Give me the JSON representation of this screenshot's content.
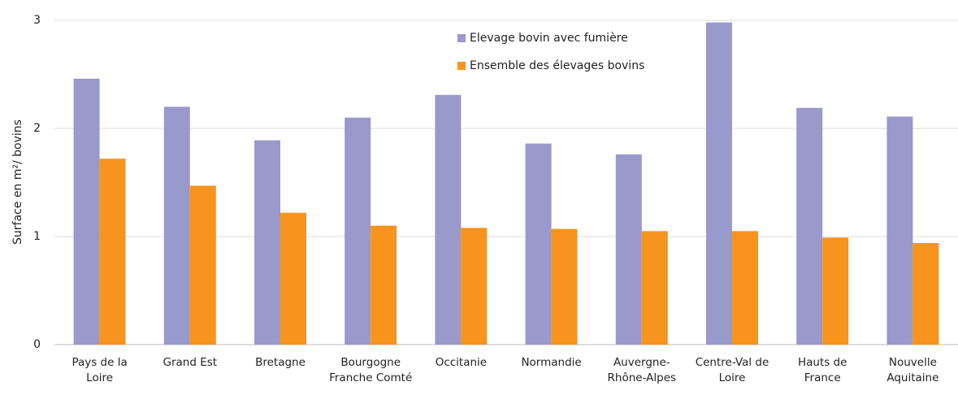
{
  "chart_data": {
    "type": "bar",
    "y_label": "Surface en m²/ bovins",
    "categories": [
      "Pays de la Loire",
      "Grand Est",
      "Bretagne",
      "Bourgogne Franche Comté",
      "Occitanie",
      "Normandie",
      "Auvergne-Rhône-Alpes",
      "Centre-Val de Loire",
      "Hauts de France",
      "Nouvelle Aquitaine"
    ],
    "series": [
      {
        "name": "Elevage bovin avec fumière",
        "color": "#9999cc",
        "values": [
          2.46,
          2.2,
          1.89,
          2.1,
          2.31,
          1.86,
          1.76,
          2.98,
          2.19,
          2.11
        ]
      },
      {
        "name": "Ensemble des élevages bovins",
        "color": "#f7941d",
        "values": [
          1.72,
          1.47,
          1.22,
          1.1,
          1.08,
          1.07,
          1.05,
          1.05,
          0.99,
          0.94
        ]
      }
    ],
    "ylim": [
      0,
      3
    ],
    "yticks": [
      0,
      1,
      2,
      3
    ],
    "grid": true,
    "legend": "top-center"
  }
}
